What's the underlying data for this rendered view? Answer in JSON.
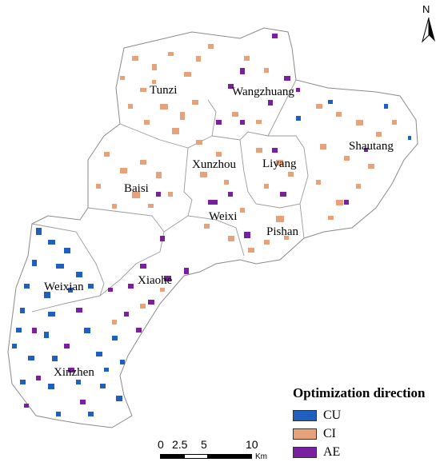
{
  "map": {
    "townships": [
      {
        "name": "Tunzi"
      },
      {
        "name": "Wangzhuang"
      },
      {
        "name": "Shautang"
      },
      {
        "name": "Xunzhou"
      },
      {
        "name": "Liyang"
      },
      {
        "name": "Baisi"
      },
      {
        "name": "Weixi"
      },
      {
        "name": "Pishan"
      },
      {
        "name": "Weixian"
      },
      {
        "name": "Xiaohe"
      },
      {
        "name": "Xinzhen"
      }
    ],
    "north_arrow": {
      "label": "N",
      "icon": "north-arrow-icon"
    },
    "colors": {
      "CU": "#1f5fbf",
      "CI": "#e8a27a",
      "AE": "#7a1fa0",
      "boundary": "#8a8a8a"
    }
  },
  "legend": {
    "title": "Optimization direction",
    "items": [
      {
        "label": "CU",
        "color": "#1f5fbf"
      },
      {
        "label": "CI",
        "color": "#e8a27a"
      },
      {
        "label": "AE",
        "color": "#7a1fa0"
      }
    ]
  },
  "scalebar": {
    "ticks": [
      "0",
      "2.5",
      "5",
      "10"
    ],
    "unit": "Km"
  }
}
